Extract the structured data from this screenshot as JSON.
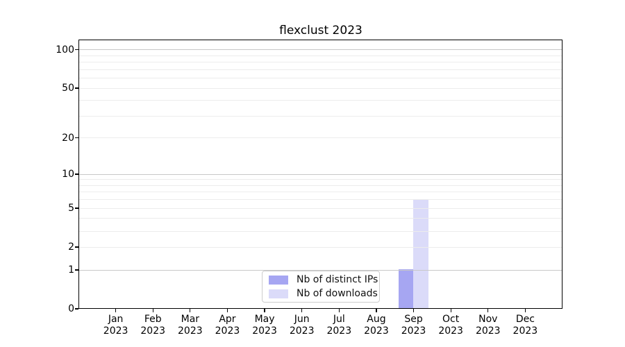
{
  "title": "flexclust 2023",
  "chart_data": {
    "type": "bar",
    "title": "flexclust 2023",
    "categories": [
      {
        "month": "Jan",
        "year": "2023"
      },
      {
        "month": "Feb",
        "year": "2023"
      },
      {
        "month": "Mar",
        "year": "2023"
      },
      {
        "month": "Apr",
        "year": "2023"
      },
      {
        "month": "May",
        "year": "2023"
      },
      {
        "month": "Jun",
        "year": "2023"
      },
      {
        "month": "Jul",
        "year": "2023"
      },
      {
        "month": "Aug",
        "year": "2023"
      },
      {
        "month": "Sep",
        "year": "2023"
      },
      {
        "month": "Oct",
        "year": "2023"
      },
      {
        "month": "Nov",
        "year": "2023"
      },
      {
        "month": "Dec",
        "year": "2023"
      }
    ],
    "series": [
      {
        "name": "Nb of distinct IPs",
        "color": "#a6a6f2",
        "values": [
          0,
          0,
          0,
          0,
          0,
          0,
          0,
          0,
          1,
          0,
          0,
          0
        ]
      },
      {
        "name": "Nb of downloads",
        "color": "#dbdbf9",
        "values": [
          0,
          0,
          0,
          0,
          0,
          0,
          0,
          0,
          6,
          0,
          0,
          0
        ]
      }
    ],
    "xlabel": "",
    "ylabel": "",
    "yscale": "log1p",
    "ylim": [
      0,
      120
    ],
    "yticks": [
      0,
      1,
      2,
      5,
      10,
      20,
      50,
      100
    ],
    "grid_major": [
      1,
      10,
      100
    ],
    "grid_minor": [
      2,
      3,
      4,
      5,
      6,
      7,
      8,
      9,
      20,
      30,
      40,
      50,
      60,
      70,
      80,
      90
    ],
    "grid": "on",
    "legend_position": "lower-center",
    "legend_entries": [
      "Nb of distinct IPs",
      "Nb of downloads"
    ]
  },
  "colors": {
    "background": "#ffffff",
    "frame": "#000000",
    "grid_major": "#c8c8c8",
    "grid_minor": "#ececec",
    "bar_distinct_ips": "#a6a6f2",
    "bar_downloads": "#dbdbf9"
  }
}
